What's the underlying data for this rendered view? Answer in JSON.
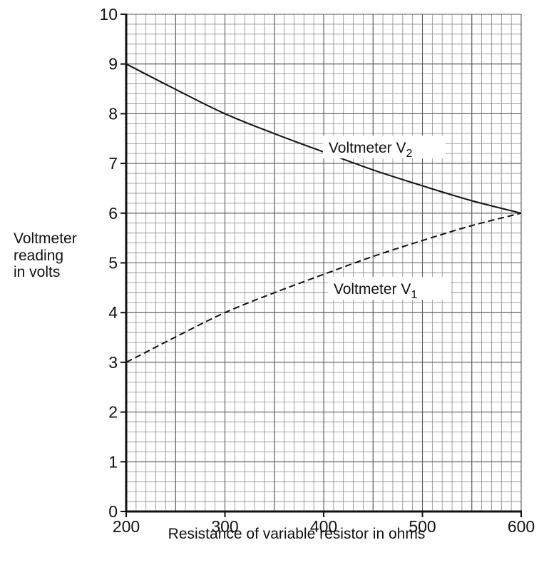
{
  "chart_data": {
    "type": "line",
    "xlabel": "Resistance of variable resistor in ohms",
    "ylabel_lines": [
      "Voltmeter",
      "reading",
      "in volts"
    ],
    "xlim": [
      200,
      600
    ],
    "ylim": [
      0,
      10
    ],
    "x_ticks": [
      200,
      300,
      400,
      500,
      600
    ],
    "y_ticks": [
      0,
      1,
      2,
      3,
      4,
      5,
      6,
      7,
      8,
      9,
      10
    ],
    "x_minor_step": 10,
    "y_minor_step": 0.2,
    "grid": true,
    "series": [
      {
        "name": "Voltmeter V2",
        "label_main": "Voltmeter V",
        "label_sub": "2",
        "line_style": "solid",
        "x": [
          200,
          250,
          300,
          350,
          400,
          450,
          500,
          550,
          600
        ],
        "y": [
          9.0,
          8.49,
          8.0,
          7.6,
          7.23,
          6.87,
          6.55,
          6.25,
          6.0
        ]
      },
      {
        "name": "Voltmeter V1",
        "label_main": "Voltmeter V",
        "label_sub": "1",
        "line_style": "dashed",
        "x": [
          200,
          250,
          300,
          350,
          400,
          450,
          500,
          550,
          600
        ],
        "y": [
          3.0,
          3.51,
          4.0,
          4.4,
          4.77,
          5.13,
          5.45,
          5.75,
          6.0
        ]
      }
    ],
    "annotations": [
      {
        "series": 0,
        "x": 405,
        "y": 7.33
      },
      {
        "series": 1,
        "x": 410,
        "y": 4.49
      }
    ]
  }
}
